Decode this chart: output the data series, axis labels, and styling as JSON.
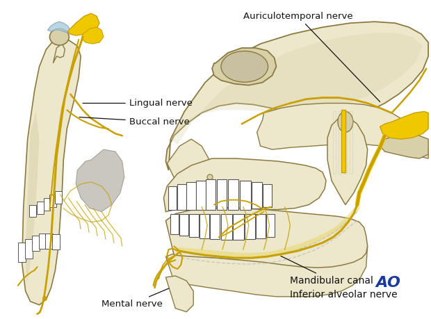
{
  "background_color": "#ffffff",
  "nerve_color": "#c8a000",
  "nerve_color_bright": "#f0c800",
  "bone_light": "#ede8cc",
  "bone_mid": "#d8d0a8",
  "bone_dark": "#c0b880",
  "bone_edge": "#8b7a40",
  "label_fontsize": 9.5,
  "figsize": [
    6.2,
    4.59
  ],
  "dpi": 100,
  "labels": {
    "auriculotemporal": "Auriculotemporal nerve",
    "lingual": "Lingual nerve",
    "buccal": "Buccal nerve",
    "mental": "Mental nerve",
    "mandibular_canal": "Mandibular canal",
    "inferior_alveolar": "Inferior alveolar nerve"
  },
  "ao_color": "#1a3a9c"
}
